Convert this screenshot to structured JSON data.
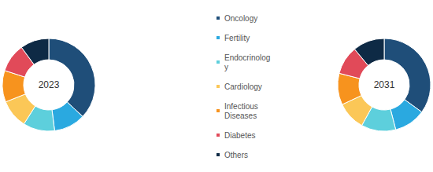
{
  "chart_data": [
    {
      "type": "pie",
      "title": "2023",
      "categories": [
        "Oncology",
        "Fertility",
        "Endocrinology",
        "Cardiology",
        "Infectious Diseases",
        "Diabetes",
        "Others"
      ],
      "values": [
        37,
        11,
        11,
        10,
        11,
        10,
        10
      ],
      "colors": [
        "#1f4e79",
        "#2aa9e0",
        "#5dcfdc",
        "#fbc757",
        "#f7931e",
        "#e14a59",
        "#0e2a45"
      ]
    },
    {
      "type": "pie",
      "title": "2031",
      "categories": [
        "Oncology",
        "Fertility",
        "Endocrinology",
        "Cardiology",
        "Infectious Diseases",
        "Diabetes",
        "Others"
      ],
      "values": [
        35,
        11,
        12,
        10,
        11,
        10,
        11
      ],
      "colors": [
        "#1f4e79",
        "#2aa9e0",
        "#5dcfdc",
        "#fbc757",
        "#f7931e",
        "#e14a59",
        "#0e2a45"
      ]
    }
  ]
}
